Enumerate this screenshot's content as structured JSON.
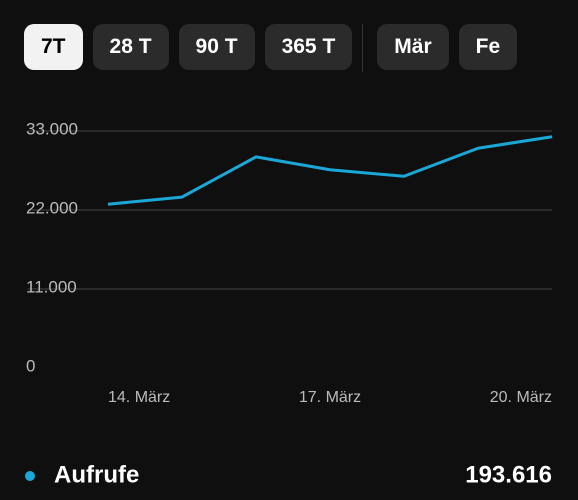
{
  "tabs": [
    "7T",
    "28 T",
    "90 T",
    "365 T",
    "Mär",
    "Fe"
  ],
  "selected_tab": 0,
  "chart_data": {
    "type": "line",
    "categories": [
      "14. März",
      null,
      null,
      "17. März",
      null,
      null,
      "20. März"
    ],
    "series": [
      {
        "name": "Aufrufe",
        "color": "#1ba8d8",
        "values": [
          22800,
          23800,
          29400,
          27600,
          26700,
          30600,
          32200
        ]
      }
    ],
    "ylim": [
      0,
      33000
    ],
    "yticks": [
      0,
      {
        "value": 11000,
        "label": "11.000"
      },
      {
        "value": 22000,
        "label": "22.000"
      },
      {
        "value": 33000,
        "label": "33.000"
      }
    ],
    "grid": true
  },
  "summary": {
    "total": "193.616"
  }
}
